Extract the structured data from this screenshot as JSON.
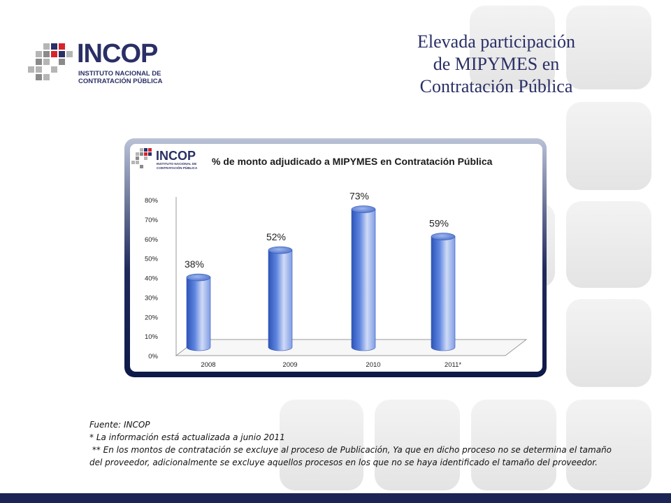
{
  "slide": {
    "title_lines": [
      "Elevada participación",
      "de MIPYMES en",
      "Contratación Pública"
    ]
  },
  "logo": {
    "brand": "INCOP",
    "sub_line1": "INSTITUTO NACIONAL DE",
    "sub_line2": "CONTRATACIÓN PÚBLICA"
  },
  "colors": {
    "title": "#2a2f66",
    "bar_fill": "#4a74d6",
    "bar_top": "#6f92e6",
    "bottom_bar": "#1c2456",
    "logo_red": "#d8232a",
    "logo_blue": "#2a2f66"
  },
  "chart_data": {
    "type": "bar",
    "title": "% de monto adjudicado a MIPYMES en Contratación Pública",
    "categories": [
      "2008",
      "2009",
      "2010",
      "2011*"
    ],
    "values": [
      38,
      52,
      73,
      59
    ],
    "data_labels": [
      "38%",
      "52%",
      "73%",
      "59%"
    ],
    "y_ticks": [
      "0%",
      "10%",
      "20%",
      "30%",
      "40%",
      "50%",
      "60%",
      "70%",
      "80%"
    ],
    "ylim": [
      0,
      80
    ],
    "xlabel": "",
    "ylabel": "",
    "grid": false,
    "legend": "none",
    "style": "3d-cylinder"
  },
  "footnotes": {
    "source": "Fuente: INCOP",
    "note1": "* La información está actualizada a junio 2011",
    "note2": " ** En los montos de contratación se excluye al proceso de Publicación, Ya que en dicho proceso no se determina el tamaño del proveedor, adicionalmente se excluye aquellos procesos en los que no se haya identificado el tamaño del proveedor."
  }
}
